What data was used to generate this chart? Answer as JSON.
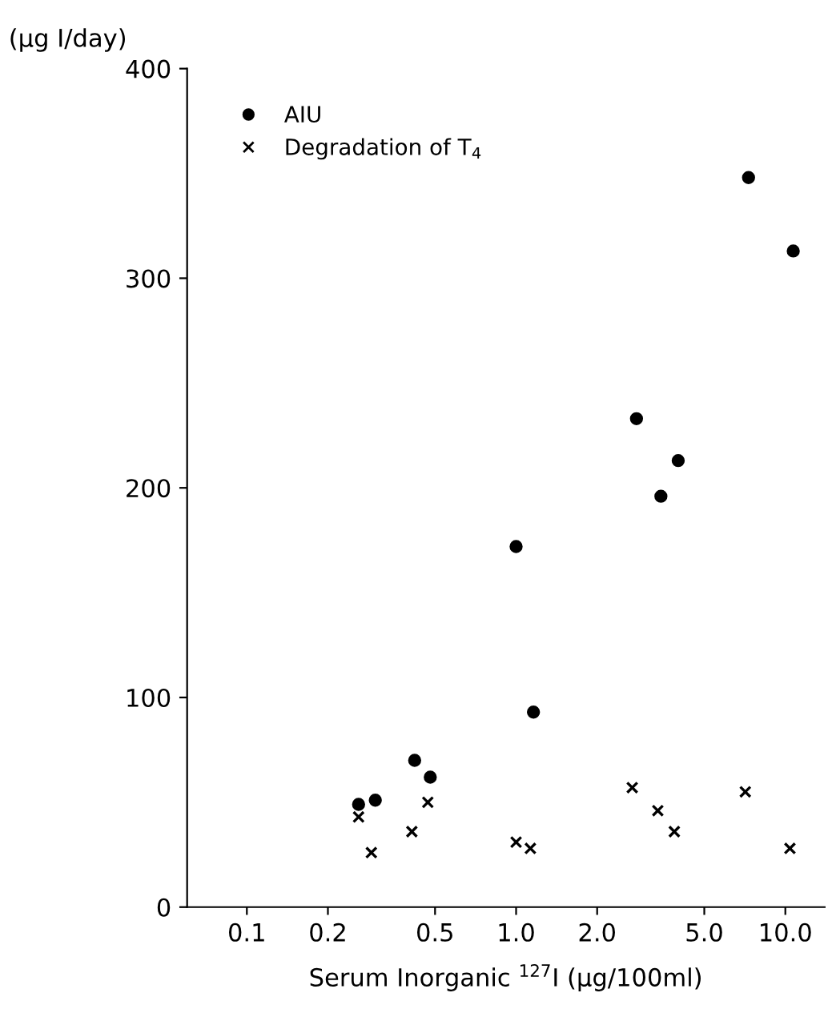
{
  "chart_data": {
    "type": "scatter",
    "xlabel": "Serum Inorganic $^{127}$I (µg/100ml)",
    "ylabel": "(µg I/day)",
    "log": "x",
    "xlim": [
      0.06,
      14
    ],
    "xticks": [
      0.1,
      0.2,
      0.5,
      {
        "value": 1,
        "label": "1.0"
      },
      {
        "value": 2,
        "label": "2.0"
      },
      {
        "value": 5,
        "label": "5.0"
      },
      {
        "value": 10,
        "label": "10.0"
      }
    ],
    "ylim": [
      0,
      400
    ],
    "yticks": [
      0,
      100,
      200,
      300,
      400
    ],
    "grid": false,
    "legend": "top left",
    "series": [
      {
        "name": "AIU",
        "color": "#000000",
        "marker": "circle",
        "x": [
          0.26,
          0.3,
          0.42,
          0.48,
          1.0,
          1.16,
          2.8,
          3.45,
          4.0,
          7.3,
          10.7
        ],
        "values": [
          49,
          51,
          70,
          62,
          172,
          93,
          233,
          196,
          213,
          348,
          313
        ]
      },
      {
        "name": "Degradation of T$_{4}$",
        "color": "#000000",
        "marker": "cross",
        "x": [
          0.26,
          0.29,
          0.41,
          0.47,
          1.0,
          1.13,
          2.7,
          3.36,
          3.87,
          7.1,
          10.4
        ],
        "values": [
          43,
          26,
          36,
          50,
          31,
          28,
          57,
          46,
          36,
          55,
          28
        ]
      }
    ]
  }
}
